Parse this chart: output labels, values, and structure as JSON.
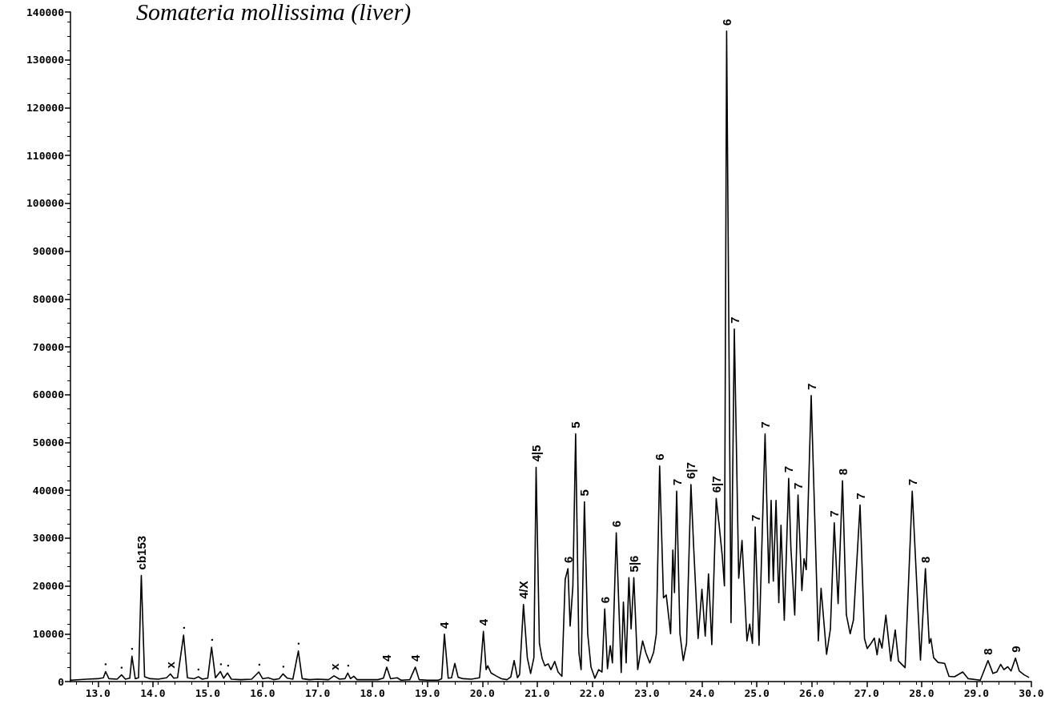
{
  "chart_data": {
    "type": "line",
    "title": "Somateria mollissima (liver)",
    "x": [
      12.5,
      12.8,
      13.0,
      13.1,
      13.14,
      13.2,
      13.35,
      13.43,
      13.5,
      13.58,
      13.62,
      13.68,
      13.74,
      13.79,
      13.85,
      13.95,
      14.1,
      14.25,
      14.32,
      14.38,
      14.45,
      14.56,
      14.63,
      14.75,
      14.83,
      14.9,
      15.0,
      15.07,
      15.14,
      15.23,
      15.29,
      15.36,
      15.43,
      15.6,
      15.8,
      15.93,
      16.0,
      16.1,
      16.2,
      16.3,
      16.37,
      16.45,
      16.55,
      16.65,
      16.72,
      16.85,
      17.0,
      17.2,
      17.3,
      17.4,
      17.5,
      17.55,
      17.6,
      17.66,
      17.72,
      17.9,
      18.1,
      18.2,
      18.26,
      18.33,
      18.45,
      18.52,
      18.68,
      18.78,
      18.85,
      19.0,
      19.2,
      19.26,
      19.31,
      19.38,
      19.44,
      19.5,
      19.56,
      19.65,
      19.8,
      19.95,
      19.98,
      20.02,
      20.07,
      20.1,
      20.16,
      20.25,
      20.35,
      20.45,
      20.52,
      20.58,
      20.64,
      20.68,
      20.75,
      20.82,
      20.88,
      20.94,
      20.98,
      21.04,
      21.09,
      21.14,
      21.2,
      21.25,
      21.32,
      21.38,
      21.45,
      21.51,
      21.56,
      21.6,
      21.65,
      21.7,
      21.76,
      21.8,
      21.86,
      21.92,
      21.98,
      22.05,
      22.12,
      22.18,
      22.23,
      22.28,
      22.33,
      22.37,
      22.44,
      22.53,
      22.57,
      22.62,
      22.67,
      22.71,
      22.76,
      22.83,
      22.92,
      22.98,
      23.05,
      23.12,
      23.17,
      23.23,
      23.3,
      23.35,
      23.43,
      23.47,
      23.5,
      23.54,
      23.6,
      23.66,
      23.72,
      23.8,
      23.85,
      23.93,
      24.0,
      24.06,
      24.12,
      24.18,
      24.26,
      24.31,
      24.37,
      24.41,
      24.45,
      24.53,
      24.59,
      24.67,
      24.73,
      24.82,
      24.87,
      24.92,
      24.97,
      25.04,
      25.15,
      25.22,
      25.26,
      25.3,
      25.35,
      25.4,
      25.44,
      25.5,
      25.58,
      25.62,
      25.69,
      25.75,
      25.82,
      25.86,
      25.9,
      25.99,
      26.12,
      26.17,
      26.27,
      26.34,
      26.41,
      26.48,
      26.56,
      26.63,
      26.7,
      26.76,
      26.88,
      26.96,
      27.01,
      27.08,
      27.14,
      27.19,
      27.23,
      27.28,
      27.35,
      27.44,
      27.52,
      27.58,
      27.7,
      27.83,
      27.98,
      28.07,
      28.14,
      28.17,
      28.22,
      28.3,
      28.42,
      28.5,
      28.6,
      28.75,
      28.85,
      29.07,
      29.21,
      29.3,
      29.37,
      29.44,
      29.5,
      29.57,
      29.63,
      29.71,
      29.78,
      29.87,
      29.95
    ],
    "series": [
      {
        "color": "#000000",
        "values": [
          300,
          500,
          600,
          800,
          2100,
          600,
          500,
          1400,
          500,
          700,
          5300,
          600,
          800,
          22200,
          1000,
          600,
          500,
          800,
          1600,
          700,
          800,
          9700,
          800,
          600,
          1000,
          500,
          700,
          7200,
          800,
          2100,
          700,
          1800,
          500,
          400,
          500,
          2000,
          600,
          800,
          400,
          600,
          1600,
          700,
          500,
          6400,
          600,
          400,
          500,
          400,
          1200,
          500,
          600,
          1800,
          600,
          1100,
          400,
          400,
          400,
          700,
          3000,
          600,
          800,
          300,
          400,
          3000,
          400,
          300,
          300,
          600,
          9900,
          700,
          800,
          3800,
          900,
          600,
          500,
          800,
          4500,
          10500,
          2500,
          3300,
          1800,
          1200,
          600,
          400,
          1000,
          4400,
          800,
          1500,
          16100,
          5000,
          1700,
          5000,
          44800,
          8000,
          4800,
          3300,
          3700,
          2500,
          4200,
          2000,
          1100,
          21400,
          23600,
          11600,
          20000,
          51800,
          6000,
          2500,
          37600,
          10000,
          3000,
          700,
          2500,
          2000,
          15200,
          2700,
          7500,
          3900,
          31100,
          1900,
          16600,
          3900,
          21700,
          11000,
          21700,
          2500,
          8500,
          6000,
          3900,
          6100,
          10000,
          45100,
          17500,
          18100,
          10000,
          27500,
          18600,
          39800,
          10000,
          4400,
          8000,
          41200,
          28000,
          9000,
          19300,
          9500,
          22500,
          7700,
          38300,
          33100,
          26300,
          20000,
          136000,
          12300,
          73700,
          21600,
          29500,
          8500,
          12000,
          8000,
          32300,
          7600,
          51800,
          20600,
          37900,
          21000,
          37900,
          16500,
          32700,
          12800,
          42500,
          28000,
          13900,
          39000,
          19000,
          25700,
          23400,
          59800,
          8500,
          19500,
          5700,
          11000,
          33200,
          16300,
          42000,
          14000,
          10000,
          12900,
          36900,
          9000,
          6900,
          8000,
          9100,
          5600,
          9000,
          7000,
          13900,
          4300,
          10800,
          4300,
          2900,
          39800,
          4500,
          23600,
          8000,
          9000,
          5000,
          4000,
          3800,
          1100,
          1000,
          2000,
          600,
          300,
          4400,
          1700,
          2000,
          3600,
          2500,
          3100,
          2200,
          4900,
          2200,
          1400,
          900
        ]
      }
    ],
    "xlim": [
      12.5,
      30.0
    ],
    "xticks": [
      {
        "value": 13,
        "label": "13.0"
      },
      {
        "value": 14,
        "label": "14.0"
      },
      {
        "value": 15,
        "label": "15.0"
      },
      {
        "value": 16,
        "label": "16.0"
      },
      {
        "value": 17,
        "label": "17.0"
      },
      {
        "value": 18,
        "label": "18.0"
      },
      {
        "value": 19,
        "label": "19.0"
      },
      {
        "value": 20,
        "label": "20.0"
      },
      {
        "value": 21,
        "label": "21.0"
      },
      {
        "value": 22,
        "label": "22.0"
      },
      {
        "value": 23,
        "label": "23.0"
      },
      {
        "value": 24,
        "label": "24.0"
      },
      {
        "value": 25,
        "label": "25.0"
      },
      {
        "value": 26,
        "label": "26.0"
      },
      {
        "value": 27,
        "label": "27.0"
      },
      {
        "value": 28,
        "label": "28.0"
      },
      {
        "value": 29,
        "label": "29.0"
      },
      {
        "value": 30,
        "label": "30.0"
      }
    ],
    "ylim": [
      0,
      140000
    ],
    "yticks": [
      0,
      10000,
      20000,
      30000,
      40000,
      50000,
      60000,
      70000,
      80000,
      90000,
      100000,
      110000,
      120000,
      130000,
      140000
    ],
    "grid": false,
    "marker": "none",
    "line_style": "solid",
    "annotations": [
      {
        "text": "·",
        "x": 13.14,
        "y": 2100
      },
      {
        "text": "·",
        "x": 13.43,
        "y": 1400
      },
      {
        "text": "·",
        "x": 13.62,
        "y": 5300
      },
      {
        "text": "cb153",
        "x": 13.79,
        "y": 22200
      },
      {
        "text": "x",
        "x": 14.32,
        "y": 1600
      },
      {
        "text": "·",
        "x": 14.56,
        "y": 9700
      },
      {
        "text": "·",
        "x": 14.83,
        "y": 1000
      },
      {
        "text": "·",
        "x": 15.07,
        "y": 7200
      },
      {
        "text": "·",
        "x": 15.23,
        "y": 2100
      },
      {
        "text": "·",
        "x": 15.36,
        "y": 1800
      },
      {
        "text": "·",
        "x": 15.93,
        "y": 2000
      },
      {
        "text": "·",
        "x": 16.37,
        "y": 1600
      },
      {
        "text": "·",
        "x": 16.65,
        "y": 6400
      },
      {
        "text": "x",
        "x": 17.3,
        "y": 1200
      },
      {
        "text": "·",
        "x": 17.55,
        "y": 1800
      },
      {
        "text": "4",
        "x": 18.26,
        "y": 3000
      },
      {
        "text": "4",
        "x": 18.78,
        "y": 3000
      },
      {
        "text": "4",
        "x": 19.31,
        "y": 9900
      },
      {
        "text": "4",
        "x": 20.02,
        "y": 10500
      },
      {
        "text": "4/X",
        "x": 20.75,
        "y": 16100
      },
      {
        "text": "4|5",
        "x": 20.98,
        "y": 44800
      },
      {
        "text": "6",
        "x": 21.56,
        "y": 23600
      },
      {
        "text": "5",
        "x": 21.7,
        "y": 51800
      },
      {
        "text": "5",
        "x": 21.86,
        "y": 37600
      },
      {
        "text": "6",
        "x": 22.23,
        "y": 15200
      },
      {
        "text": "6",
        "x": 22.44,
        "y": 31100
      },
      {
        "text": "5|6",
        "x": 22.76,
        "y": 21700
      },
      {
        "text": "6",
        "x": 23.23,
        "y": 45100
      },
      {
        "text": "7",
        "x": 23.54,
        "y": 39800
      },
      {
        "text": "6|7",
        "x": 23.8,
        "y": 41200
      },
      {
        "text": "6|7",
        "x": 24.26,
        "y": 38300
      },
      {
        "text": "6",
        "x": 24.45,
        "y": 136000
      },
      {
        "text": "7",
        "x": 24.59,
        "y": 73700
      },
      {
        "text": "7",
        "x": 24.97,
        "y": 32300
      },
      {
        "text": "7",
        "x": 25.15,
        "y": 51800
      },
      {
        "text": "7",
        "x": 25.58,
        "y": 42500
      },
      {
        "text": "7",
        "x": 25.75,
        "y": 39000
      },
      {
        "text": "7",
        "x": 25.99,
        "y": 59800
      },
      {
        "text": "7",
        "x": 26.41,
        "y": 33200
      },
      {
        "text": "8",
        "x": 26.56,
        "y": 42000
      },
      {
        "text": "7",
        "x": 26.88,
        "y": 36900
      },
      {
        "text": "7",
        "x": 27.83,
        "y": 39800
      },
      {
        "text": "8",
        "x": 28.07,
        "y": 23600
      },
      {
        "text": "8",
        "x": 29.21,
        "y": 4400
      },
      {
        "text": "9",
        "x": 29.71,
        "y": 4900
      }
    ]
  }
}
